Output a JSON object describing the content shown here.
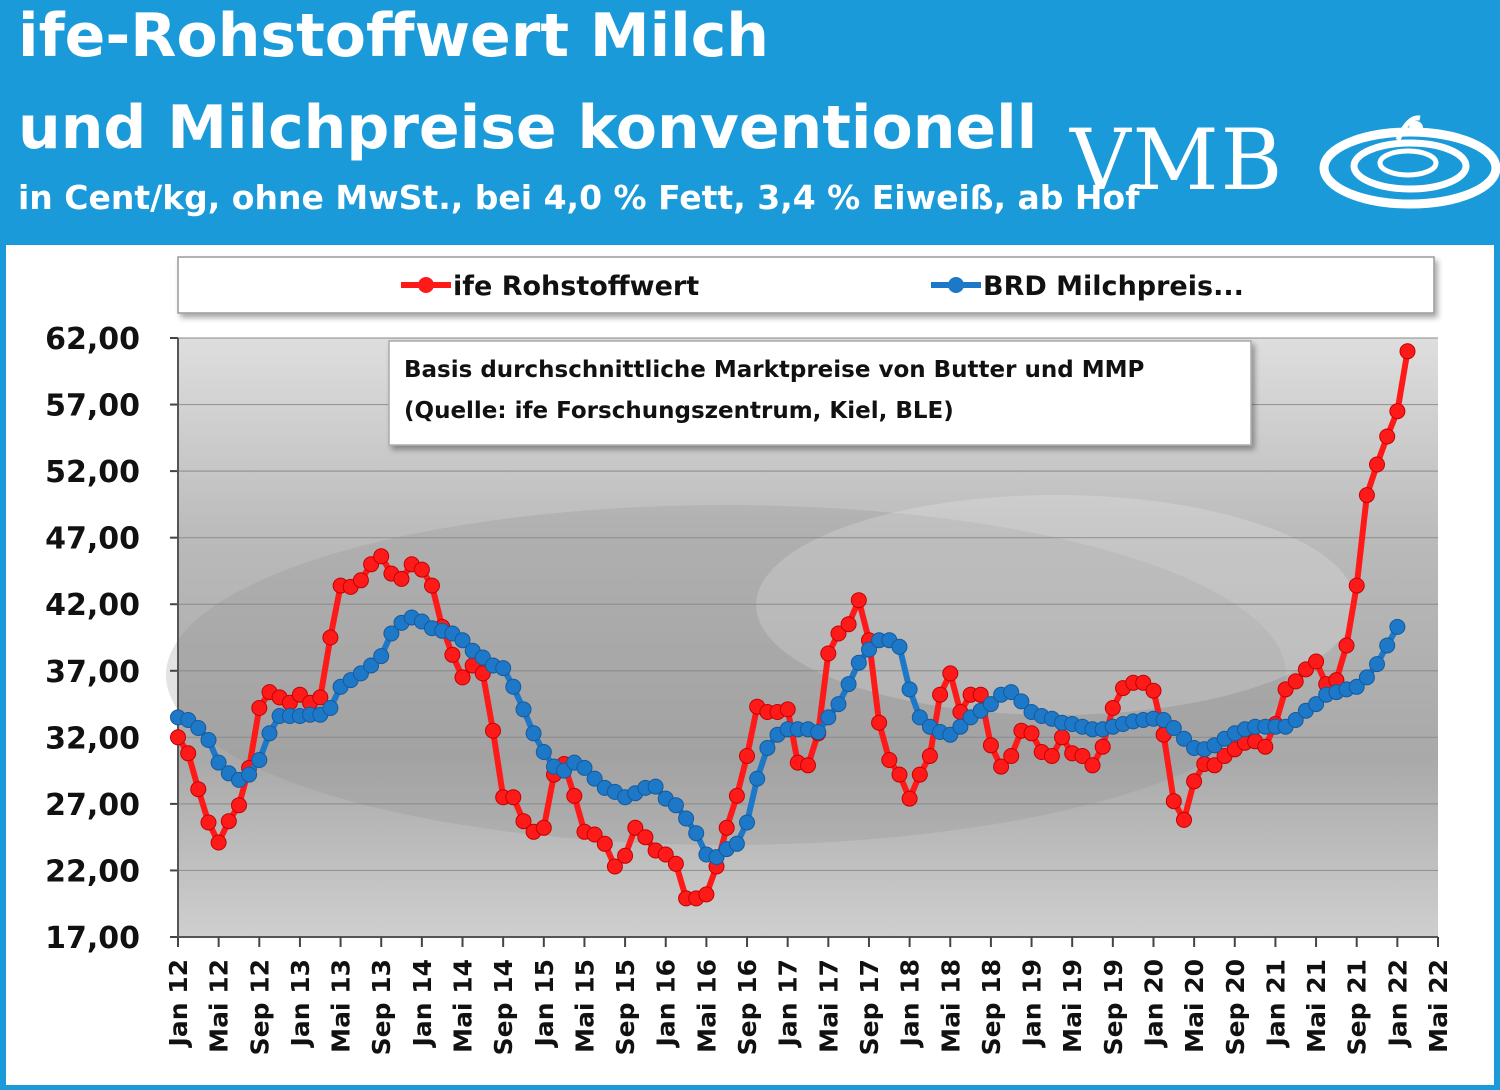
{
  "header": {
    "title_line1": "ife-Rohstoffwert Milch",
    "title_line2": "und Milchpreise konventionell",
    "subtitle": "in Cent/kg, ohne MwSt., bei 4,0 % Fett, 3,4 % Eiweiß, ab Hof",
    "logo_text": "VMB",
    "colors": {
      "background": "#1a9ad9",
      "text": "#ffffff"
    }
  },
  "annotation": {
    "line1": "Basis durchschnittliche Marktpreise von Butter und MMP",
    "line2": "(Quelle: ife Forschungszentrum, Kiel, BLE)"
  },
  "chart_data": {
    "type": "line",
    "x_tick_labels": [
      "Jan 12",
      "Mai 12",
      "Sep 12",
      "Jan 13",
      "Mai 13",
      "Sep 13",
      "Jan 14",
      "Mai 14",
      "Sep 14",
      "Jan 15",
      "Mai 15",
      "Sep 15",
      "Jan 16",
      "Mai 16",
      "Sep 16",
      "Jan 17",
      "Mai 17",
      "Sep 17",
      "Jan 18",
      "Mai 18",
      "Sep 18",
      "Jan 19",
      "Mai 19",
      "Sep 19",
      "Jan 20",
      "Mai 20",
      "Sep 20",
      "Jan 21",
      "Mai 21",
      "Sep 21",
      "Jan 22",
      "Mai 22"
    ],
    "y_tick_labels": [
      "62,00",
      "57,00",
      "52,00",
      "47,00",
      "42,00",
      "37,00",
      "32,00",
      "27,00",
      "22,00",
      "17,00"
    ],
    "ylim": [
      17,
      62
    ],
    "grid": true,
    "legend_position": "top",
    "x_start": "Jan 12",
    "x_step": "1 month",
    "series": [
      {
        "name": "ife Rohstoffwert",
        "color": "#ff1a1a",
        "values": [
          32.0,
          30.8,
          28.1,
          25.6,
          24.1,
          25.7,
          26.9,
          29.7,
          34.2,
          35.4,
          35.0,
          34.6,
          35.2,
          34.6,
          35.0,
          39.5,
          43.4,
          43.3,
          43.8,
          45.0,
          45.6,
          44.3,
          43.9,
          45.0,
          44.6,
          43.4,
          40.3,
          38.2,
          36.5,
          37.4,
          36.8,
          32.5,
          27.5,
          27.5,
          25.7,
          24.9,
          25.2,
          29.2,
          30.0,
          27.6,
          24.9,
          24.7,
          24.0,
          22.3,
          23.1,
          25.2,
          24.5,
          23.5,
          23.2,
          22.5,
          19.9,
          19.9,
          20.2,
          22.3,
          25.2,
          27.6,
          30.6,
          34.3,
          33.9,
          33.9,
          34.1,
          30.1,
          29.9,
          32.3,
          38.3,
          39.8,
          40.5,
          42.3,
          39.3,
          33.1,
          30.3,
          29.2,
          27.4,
          29.2,
          30.6,
          35.2,
          36.8,
          33.9,
          35.2,
          35.2,
          31.4,
          29.8,
          30.6,
          32.5,
          32.3,
          30.9,
          30.6,
          32.0,
          30.8,
          30.6,
          29.9,
          31.3,
          34.2,
          35.7,
          36.1,
          36.1,
          35.5,
          32.2,
          27.2,
          25.8,
          28.7,
          30.0,
          29.9,
          30.6,
          31.1,
          31.6,
          31.7,
          31.3,
          33.0,
          35.6,
          36.2,
          37.1,
          37.7,
          36.0,
          36.3,
          38.9,
          43.4,
          50.2,
          52.5,
          54.6,
          56.5,
          61.0
        ]
      },
      {
        "name": "BRD Milchpreis...",
        "color": "#1e78c8",
        "values": [
          33.5,
          33.3,
          32.7,
          31.8,
          30.1,
          29.3,
          28.8,
          29.2,
          30.3,
          32.3,
          33.6,
          33.6,
          33.6,
          33.7,
          33.7,
          34.2,
          35.8,
          36.3,
          36.8,
          37.4,
          38.1,
          39.8,
          40.6,
          41.0,
          40.7,
          40.2,
          40.0,
          39.8,
          39.3,
          38.5,
          38.0,
          37.4,
          37.2,
          35.8,
          34.1,
          32.3,
          30.9,
          29.8,
          29.5,
          30.1,
          29.7,
          28.9,
          28.2,
          27.9,
          27.5,
          27.8,
          28.2,
          28.3,
          27.4,
          26.9,
          25.9,
          24.8,
          23.2,
          23.0,
          23.6,
          24.0,
          25.6,
          28.9,
          31.2,
          32.2,
          32.6,
          32.6,
          32.6,
          32.4,
          33.5,
          34.5,
          36.0,
          37.6,
          38.6,
          39.3,
          39.3,
          38.8,
          35.6,
          33.5,
          32.8,
          32.4,
          32.2,
          32.8,
          33.5,
          34.0,
          34.5,
          35.2,
          35.4,
          34.7,
          33.9,
          33.6,
          33.4,
          33.1,
          33.0,
          32.8,
          32.6,
          32.6,
          32.8,
          33.0,
          33.2,
          33.3,
          33.4,
          33.3,
          32.7,
          31.9,
          31.2,
          31.1,
          31.4,
          31.9,
          32.3,
          32.6,
          32.8,
          32.8,
          32.8,
          32.8,
          33.3,
          34.0,
          34.5,
          35.2,
          35.4,
          35.6,
          35.8,
          36.5,
          37.5,
          38.9,
          40.3
        ]
      }
    ]
  }
}
